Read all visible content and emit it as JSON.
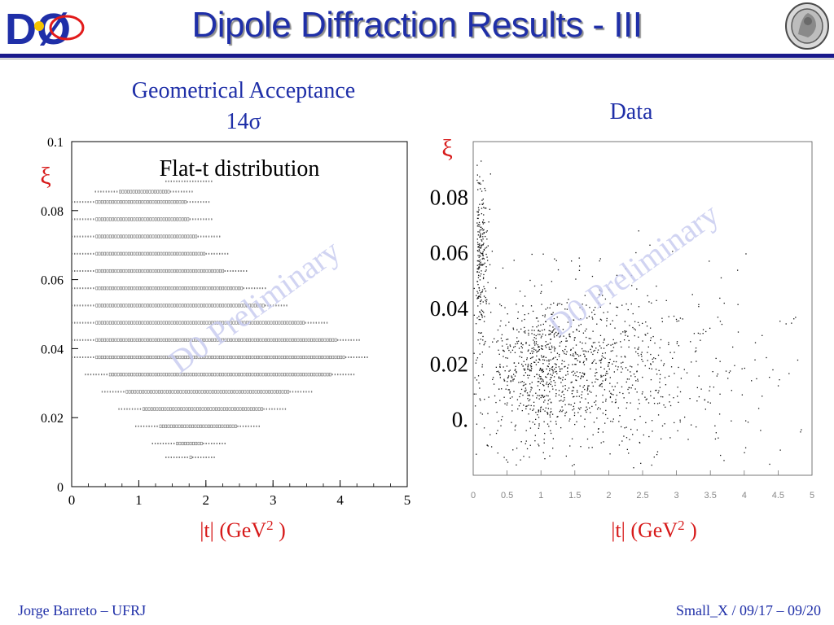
{
  "slide": {
    "title": "Dipole Diffraction Results - III",
    "footer_left": "Jorge Barreto – UFRJ",
    "footer_right": "Small_X / 09/17 – 09/20",
    "logo_text": "DØ",
    "watermark": "D0 Preliminary"
  },
  "colors": {
    "title_blue": "#1f2fa8",
    "label_red": "#d71a1a",
    "watermark_blue": "#c9cdf0",
    "rule_navy": "#1a1a8c"
  },
  "icons": [
    "d0-logo-icon",
    "university-seal-icon"
  ],
  "left_panel": {
    "heading_line1": "Geometrical Acceptance",
    "heading_line2": "14σ",
    "annotation": "Flat-t distribution"
  },
  "right_panel": {
    "heading": "Data"
  },
  "chart_data": [
    {
      "type": "scatter",
      "title": "Geometrical Acceptance 14σ",
      "annotation": "Flat-t distribution",
      "xlabel": "|t| (GeV",
      "xlabel_sup": "2",
      "xlabel_tail": " )",
      "ylabel": "ξ",
      "xlim": [
        0,
        5
      ],
      "ylim": [
        0,
        0.1
      ],
      "xticks": [
        "0",
        "1",
        "2",
        "3",
        "4",
        "5"
      ],
      "yticks": [
        "0",
        "0.02",
        "0.04",
        "0.06",
        "0.08",
        "0.1"
      ],
      "grid": false,
      "acceptance_region": [
        {
          "xi": 0.0085,
          "t_min": 1.4,
          "t_max": 2.15
        },
        {
          "xi": 0.0125,
          "t_min": 1.2,
          "t_max": 2.3
        },
        {
          "xi": 0.0175,
          "t_min": 0.95,
          "t_max": 2.8
        },
        {
          "xi": 0.0225,
          "t_min": 0.7,
          "t_max": 3.2
        },
        {
          "xi": 0.0275,
          "t_min": 0.45,
          "t_max": 3.6
        },
        {
          "xi": 0.0325,
          "t_min": 0.2,
          "t_max": 4.2
        },
        {
          "xi": 0.0375,
          "t_min": 0.0,
          "t_max": 4.4
        },
        {
          "xi": 0.0425,
          "t_min": 0.0,
          "t_max": 4.3
        },
        {
          "xi": 0.0475,
          "t_min": 0.0,
          "t_max": 3.8
        },
        {
          "xi": 0.0525,
          "t_min": 0.0,
          "t_max": 3.2
        },
        {
          "xi": 0.0575,
          "t_min": 0.0,
          "t_max": 2.9
        },
        {
          "xi": 0.0625,
          "t_min": 0.0,
          "t_max": 2.6
        },
        {
          "xi": 0.0675,
          "t_min": 0.0,
          "t_max": 2.35
        },
        {
          "xi": 0.0725,
          "t_min": 0.0,
          "t_max": 2.2
        },
        {
          "xi": 0.0775,
          "t_min": 0.0,
          "t_max": 2.1
        },
        {
          "xi": 0.0825,
          "t_min": 0.0,
          "t_max": 2.05
        },
        {
          "xi": 0.0855,
          "t_min": 0.35,
          "t_max": 1.8
        },
        {
          "xi": 0.0885,
          "t_min": 1.4,
          "t_max": 2.1
        }
      ]
    },
    {
      "type": "scatter",
      "title": "Data",
      "xlabel": "|t| (GeV",
      "xlabel_sup": "2",
      "xlabel_tail": " )",
      "ylabel": "ξ",
      "xlim": [
        0,
        5
      ],
      "ylim": [
        -0.02,
        0.1
      ],
      "xticks": [
        "0",
        "0.5",
        "1",
        "1.5",
        "2",
        "2.5",
        "3",
        "3.5",
        "4",
        "4.5",
        "5"
      ],
      "yticks": [
        "0.",
        "0.02",
        "0.04",
        "0.06",
        "0.08"
      ],
      "ytick_values": [
        0,
        0.02,
        0.04,
        0.06,
        0.08
      ],
      "grid": false,
      "clusters": [
        {
          "t_center": 1.2,
          "xi_center": 0.018,
          "t_spread": 0.9,
          "xi_spread": 0.014,
          "count": 1100
        },
        {
          "t_center": 0.05,
          "xi_center": 0.06,
          "t_spread": 0.08,
          "xi_spread": 0.015,
          "count": 220
        },
        {
          "t_center": 2.8,
          "xi_center": 0.02,
          "t_spread": 1.2,
          "xi_spread": 0.018,
          "count": 260
        }
      ]
    }
  ]
}
